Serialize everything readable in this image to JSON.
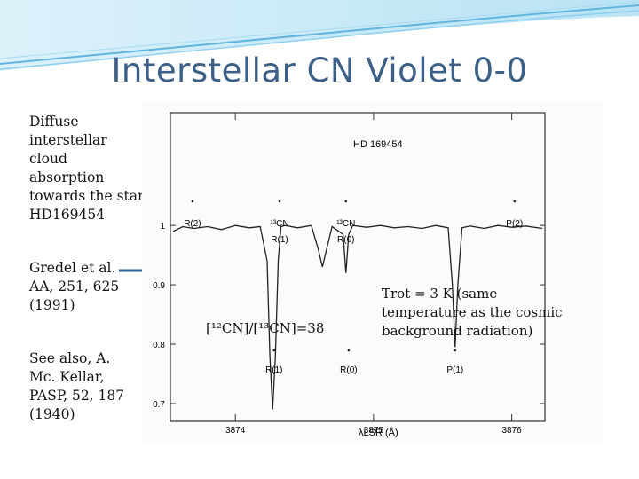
{
  "slide": {
    "title": "Interstellar CN Violet 0-0",
    "description": "Diffuse interstellar cloud absorption towards the star HD169454",
    "reference": "Gredel et al. AA, 251, 625 (1991)",
    "see_also": "See also, A. Mc. Kellar, PASP, 52, 187 (1940)",
    "ratio_label": "[¹²CN]/[¹³CN]=38",
    "trot_label": "Trot = 3 K (same temperature as the cosmic background radiation)"
  },
  "colors": {
    "title": "#3b5f86",
    "banner": "#5fb6df",
    "arrow": "#2f5f93",
    "plot": "#222222"
  },
  "chart_data": {
    "type": "line",
    "title": "HD 169454",
    "xlabel": "λLSR (Å)",
    "ylabel": "",
    "xlim": [
      3873.53,
      3876.24
    ],
    "ylim": [
      0.67,
      1.19
    ],
    "x_ticks": [
      3874,
      3875,
      3876
    ],
    "y_ticks": [
      0.7,
      0.8,
      0.9,
      1
    ],
    "series": [
      {
        "x": [
          3873.55,
          3873.62,
          3873.7,
          3873.8,
          3873.9,
          3874.0,
          3874.1,
          3874.18,
          3874.23,
          3874.25,
          3874.27,
          3874.29,
          3874.31,
          3874.33,
          3874.36,
          3874.45,
          3874.55,
          3874.6,
          3874.63,
          3874.66,
          3874.7,
          3874.78,
          3874.8,
          3874.82,
          3874.85,
          3874.95,
          3875.05,
          3875.15,
          3875.25,
          3875.35,
          3875.45,
          3875.54,
          3875.57,
          3875.59,
          3875.61,
          3875.64,
          3875.7,
          3875.8,
          3875.9,
          3876.0,
          3876.1,
          3876.22
        ],
        "y": [
          0.99,
          0.998,
          0.995,
          0.998,
          0.993,
          1.0,
          0.996,
          0.998,
          0.94,
          0.78,
          0.69,
          0.78,
          0.94,
          0.998,
          1.0,
          0.996,
          1.0,
          0.96,
          0.93,
          0.96,
          0.998,
          0.985,
          0.92,
          0.985,
          1.0,
          0.997,
          1.0,
          0.996,
          0.998,
          0.995,
          1.0,
          0.996,
          0.9,
          0.795,
          0.9,
          0.996,
          0.999,
          0.995,
          1.0,
          0.997,
          0.999,
          0.995
        ]
      }
    ],
    "annotations_top": [
      {
        "label": "R(2)",
        "x": 3873.69
      },
      {
        "label": "¹³CN",
        "x": 3874.32
      },
      {
        "label": "R(1)",
        "x": 3874.32
      },
      {
        "label": "¹³CN",
        "x": 3874.8
      },
      {
        "label": "R(0)",
        "x": 3874.8
      },
      {
        "label": "P(2)",
        "x": 3876.02
      }
    ],
    "annotations_bottom": [
      {
        "label": "R(1)",
        "x": 3874.28
      },
      {
        "label": "R(0)",
        "x": 3874.82
      },
      {
        "label": "P(1)",
        "x": 3875.59
      }
    ]
  }
}
